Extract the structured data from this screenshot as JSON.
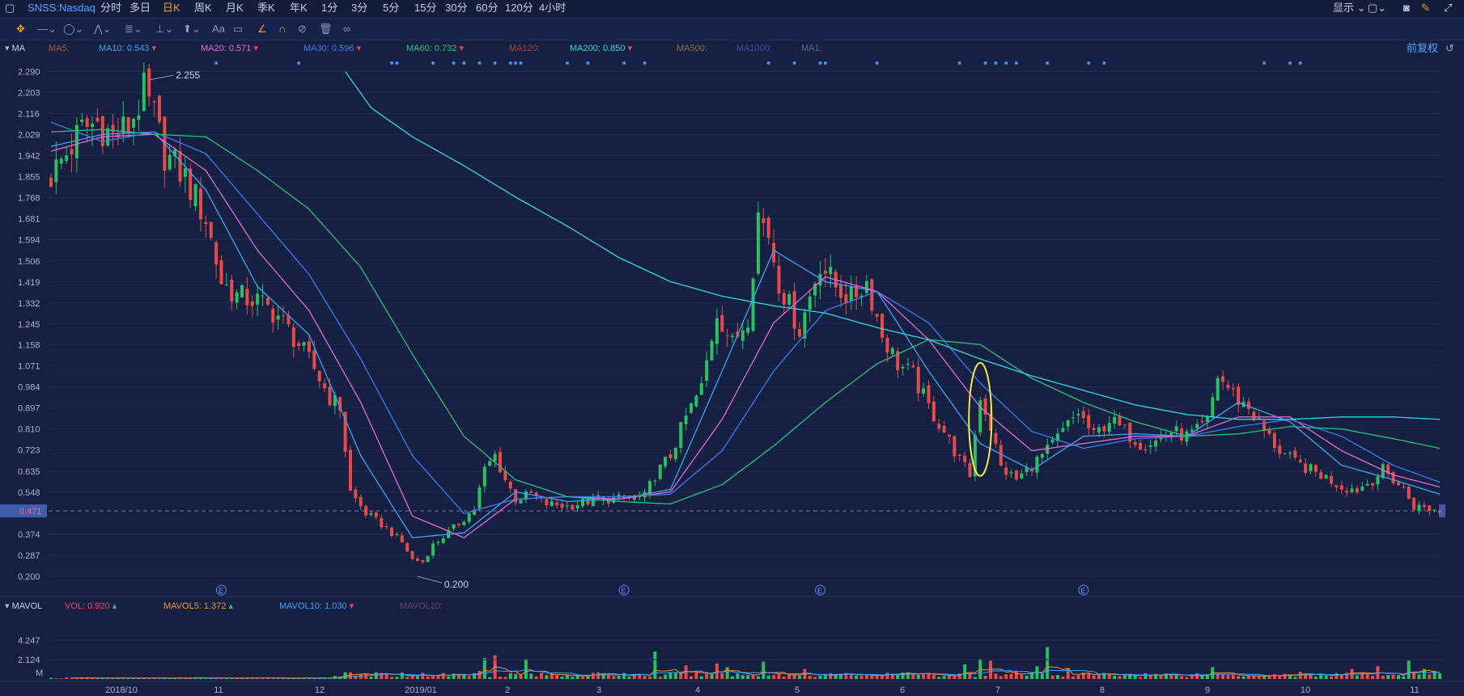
{
  "header": {
    "symbol": "SNSS:Nasdaq",
    "periods": [
      "分时",
      "多日",
      "日K",
      "周K",
      "月K",
      "季K",
      "年K",
      "1分",
      "3分",
      "5分",
      "15分",
      "30分",
      "60分",
      "120分",
      "4小时"
    ],
    "active_period": "日K",
    "display_label": "显示"
  },
  "indicators": {
    "main_name": "MA",
    "ma": [
      {
        "label": "MA5:",
        "value": "",
        "color": "#e06f2c"
      },
      {
        "label": "MA10:",
        "value": "0.543",
        "color": "#3ea3f5",
        "trend": "down"
      },
      {
        "label": "MA20:",
        "value": "0.571",
        "color": "#e56ad6",
        "trend": "down"
      },
      {
        "label": "MA30:",
        "value": "0.596",
        "color": "#3a7cf0",
        "trend": "down"
      },
      {
        "label": "MA60:",
        "value": "0.732",
        "color": "#27c17a",
        "trend": "down"
      },
      {
        "label": "MA120:",
        "value": "",
        "color": "#c9573a"
      },
      {
        "label": "MA200:",
        "value": "0.850",
        "color": "#2fd6e0",
        "trend": "down"
      },
      {
        "label": "MA500:",
        "value": "",
        "color": "#b48a3a"
      },
      {
        "label": "MA1000:",
        "value": "",
        "color": "#5a59c8"
      },
      {
        "label": "MA1:",
        "value": "",
        "color": "#7d7f96"
      }
    ],
    "adjust_label": "前复权",
    "sub_name": "MAVOL",
    "vol": [
      {
        "label": "VOL:",
        "value": "0.920",
        "color": "#e84a5f",
        "trend": "up"
      },
      {
        "label": "MAVOL5:",
        "value": "1.372",
        "color": "#f09530",
        "trend": "up"
      },
      {
        "label": "MAVOL10:",
        "value": "1.030",
        "color": "#3ea3f5",
        "trend": "down"
      },
      {
        "label": "MAVOL20:",
        "value": "",
        "color": "#8b4a8a"
      }
    ]
  },
  "chart_data": {
    "type": "candlestick",
    "price_axis": {
      "ticks": [
        "2.290",
        "2.203",
        "2.116",
        "2.029",
        "1.942",
        "1.855",
        "1.768",
        "1.681",
        "1.594",
        "1.506",
        "1.419",
        "1.332",
        "1.245",
        "1.158",
        "1.071",
        "0.984",
        "0.897",
        "0.810",
        "0.723",
        "0.635",
        "0.548",
        "0.374",
        "0.287",
        "0.200"
      ],
      "range": [
        0.17,
        2.34
      ],
      "current_price": "0.471"
    },
    "volume_axis": {
      "ticks": [
        "4.247",
        "2.124"
      ],
      "unit": "M"
    },
    "time_axis": [
      "2018/10",
      "11",
      "12",
      "2019/01",
      "2",
      "3",
      "4",
      "5",
      "6",
      "7",
      "8",
      "9",
      "10",
      "11"
    ],
    "annotations": {
      "high": "2.255",
      "low": "0.200",
      "earnings_marker": "E"
    },
    "price_path": [
      [
        0,
        1.86
      ],
      [
        3,
        1.95
      ],
      [
        6,
        2.05
      ],
      [
        9,
        2.08
      ],
      [
        12,
        2.02
      ],
      [
        15,
        2.06
      ],
      [
        18,
        2.2
      ],
      [
        20,
        2.1
      ],
      [
        22,
        1.95
      ],
      [
        26,
        1.85
      ],
      [
        30,
        1.68
      ],
      [
        33,
        1.42
      ],
      [
        36,
        1.36
      ],
      [
        40,
        1.34
      ],
      [
        44,
        1.28
      ],
      [
        48,
        1.16
      ],
      [
        51,
        1.06
      ],
      [
        54,
        0.94
      ],
      [
        56,
        0.9
      ],
      [
        58,
        0.55
      ],
      [
        61,
        0.46
      ],
      [
        65,
        0.4
      ],
      [
        68,
        0.34
      ],
      [
        70,
        0.27
      ],
      [
        72,
        0.26
      ],
      [
        74,
        0.33
      ],
      [
        78,
        0.4
      ],
      [
        82,
        0.48
      ],
      [
        84,
        0.64
      ],
      [
        86,
        0.7
      ],
      [
        88,
        0.6
      ],
      [
        90,
        0.52
      ],
      [
        93,
        0.54
      ],
      [
        96,
        0.5
      ],
      [
        100,
        0.49
      ],
      [
        104,
        0.51
      ],
      [
        108,
        0.52
      ],
      [
        112,
        0.52
      ],
      [
        115,
        0.53
      ],
      [
        117,
        0.62
      ],
      [
        120,
        0.7
      ],
      [
        123,
        0.86
      ],
      [
        126,
        0.98
      ],
      [
        129,
        1.3
      ],
      [
        132,
        1.16
      ],
      [
        135,
        1.28
      ],
      [
        137,
        1.7
      ],
      [
        139,
        1.62
      ],
      [
        141,
        1.42
      ],
      [
        143,
        1.32
      ],
      [
        145,
        1.22
      ],
      [
        147,
        1.36
      ],
      [
        149,
        1.5
      ],
      [
        152,
        1.4
      ],
      [
        155,
        1.35
      ],
      [
        158,
        1.42
      ],
      [
        161,
        1.2
      ],
      [
        164,
        1.08
      ],
      [
        167,
        1.03
      ],
      [
        170,
        0.9
      ],
      [
        173,
        0.8
      ],
      [
        176,
        0.68
      ],
      [
        178,
        0.62
      ],
      [
        180,
        0.95
      ],
      [
        182,
        0.82
      ],
      [
        184,
        0.65
      ],
      [
        187,
        0.6
      ],
      [
        190,
        0.66
      ],
      [
        193,
        0.72
      ],
      [
        196,
        0.8
      ],
      [
        199,
        0.88
      ],
      [
        202,
        0.78
      ],
      [
        205,
        0.85
      ],
      [
        208,
        0.8
      ],
      [
        211,
        0.75
      ],
      [
        214,
        0.76
      ],
      [
        217,
        0.8
      ],
      [
        220,
        0.78
      ],
      [
        222,
        0.8
      ],
      [
        224,
        0.84
      ],
      [
        226,
        1.03
      ],
      [
        228,
        0.98
      ],
      [
        230,
        0.93
      ],
      [
        232,
        0.9
      ],
      [
        235,
        0.8
      ],
      [
        238,
        0.72
      ],
      [
        241,
        0.67
      ],
      [
        244,
        0.64
      ],
      [
        247,
        0.61
      ],
      [
        250,
        0.57
      ],
      [
        253,
        0.56
      ],
      [
        256,
        0.6
      ],
      [
        258,
        0.64
      ],
      [
        260,
        0.6
      ],
      [
        262,
        0.56
      ],
      [
        264,
        0.49
      ],
      [
        267,
        0.48
      ],
      [
        269,
        0.47
      ]
    ],
    "ma_paths": {
      "MA10": [
        [
          0,
          1.98
        ],
        [
          10,
          2.03
        ],
        [
          20,
          2.04
        ],
        [
          30,
          1.8
        ],
        [
          40,
          1.4
        ],
        [
          50,
          1.2
        ],
        [
          60,
          0.7
        ],
        [
          70,
          0.36
        ],
        [
          80,
          0.38
        ],
        [
          90,
          0.55
        ],
        [
          100,
          0.51
        ],
        [
          110,
          0.52
        ],
        [
          120,
          0.56
        ],
        [
          130,
          1.05
        ],
        [
          140,
          1.55
        ],
        [
          150,
          1.42
        ],
        [
          160,
          1.38
        ],
        [
          170,
          1.05
        ],
        [
          180,
          0.75
        ],
        [
          190,
          0.64
        ],
        [
          200,
          0.78
        ],
        [
          210,
          0.79
        ],
        [
          220,
          0.78
        ],
        [
          230,
          0.92
        ],
        [
          240,
          0.84
        ],
        [
          250,
          0.66
        ],
        [
          260,
          0.6
        ],
        [
          269,
          0.54
        ]
      ],
      "MA20": [
        [
          0,
          1.96
        ],
        [
          10,
          2.02
        ],
        [
          20,
          2.03
        ],
        [
          30,
          1.88
        ],
        [
          40,
          1.55
        ],
        [
          50,
          1.3
        ],
        [
          60,
          0.92
        ],
        [
          70,
          0.45
        ],
        [
          80,
          0.36
        ],
        [
          90,
          0.52
        ],
        [
          100,
          0.53
        ],
        [
          110,
          0.52
        ],
        [
          120,
          0.55
        ],
        [
          130,
          0.85
        ],
        [
          140,
          1.25
        ],
        [
          150,
          1.44
        ],
        [
          160,
          1.38
        ],
        [
          170,
          1.18
        ],
        [
          180,
          0.9
        ],
        [
          190,
          0.72
        ],
        [
          200,
          0.75
        ],
        [
          210,
          0.78
        ],
        [
          220,
          0.78
        ],
        [
          230,
          0.86
        ],
        [
          240,
          0.86
        ],
        [
          250,
          0.72
        ],
        [
          260,
          0.62
        ],
        [
          269,
          0.57
        ]
      ],
      "MA30": [
        [
          0,
          2.08
        ],
        [
          10,
          2.0
        ],
        [
          20,
          2.04
        ],
        [
          30,
          1.95
        ],
        [
          40,
          1.7
        ],
        [
          50,
          1.45
        ],
        [
          60,
          1.1
        ],
        [
          70,
          0.7
        ],
        [
          80,
          0.46
        ],
        [
          90,
          0.52
        ],
        [
          100,
          0.53
        ],
        [
          110,
          0.53
        ],
        [
          120,
          0.54
        ],
        [
          130,
          0.72
        ],
        [
          140,
          1.05
        ],
        [
          150,
          1.3
        ],
        [
          160,
          1.38
        ],
        [
          170,
          1.25
        ],
        [
          180,
          1.0
        ],
        [
          190,
          0.8
        ],
        [
          200,
          0.73
        ],
        [
          210,
          0.77
        ],
        [
          220,
          0.78
        ],
        [
          230,
          0.82
        ],
        [
          240,
          0.85
        ],
        [
          250,
          0.78
        ],
        [
          260,
          0.66
        ],
        [
          269,
          0.59
        ]
      ],
      "MA60": [
        [
          0,
          2.04
        ],
        [
          10,
          2.05
        ],
        [
          20,
          2.03
        ],
        [
          30,
          2.02
        ],
        [
          40,
          1.88
        ],
        [
          50,
          1.72
        ],
        [
          60,
          1.48
        ],
        [
          70,
          1.12
        ],
        [
          80,
          0.78
        ],
        [
          90,
          0.6
        ],
        [
          100,
          0.53
        ],
        [
          110,
          0.51
        ],
        [
          120,
          0.5
        ],
        [
          130,
          0.58
        ],
        [
          140,
          0.74
        ],
        [
          150,
          0.92
        ],
        [
          160,
          1.08
        ],
        [
          170,
          1.18
        ],
        [
          180,
          1.16
        ],
        [
          190,
          1.02
        ],
        [
          200,
          0.92
        ],
        [
          210,
          0.84
        ],
        [
          220,
          0.78
        ],
        [
          230,
          0.79
        ],
        [
          240,
          0.82
        ],
        [
          250,
          0.81
        ],
        [
          260,
          0.77
        ],
        [
          269,
          0.73
        ]
      ],
      "MA200": [
        [
          57,
          2.29
        ],
        [
          62,
          2.14
        ],
        [
          70,
          2.02
        ],
        [
          80,
          1.9
        ],
        [
          90,
          1.77
        ],
        [
          100,
          1.65
        ],
        [
          110,
          1.52
        ],
        [
          120,
          1.42
        ],
        [
          130,
          1.36
        ],
        [
          140,
          1.32
        ],
        [
          150,
          1.29
        ],
        [
          160,
          1.23
        ],
        [
          170,
          1.18
        ],
        [
          180,
          1.1
        ],
        [
          190,
          1.03
        ],
        [
          200,
          0.97
        ],
        [
          210,
          0.91
        ],
        [
          220,
          0.87
        ],
        [
          230,
          0.85
        ],
        [
          240,
          0.85
        ],
        [
          250,
          0.86
        ],
        [
          260,
          0.86
        ],
        [
          269,
          0.85
        ]
      ]
    },
    "volume_spikes": [
      [
        83,
        0.9
      ],
      [
        84,
        2.3
      ],
      [
        86,
        2.6
      ],
      [
        92,
        2.2
      ],
      [
        117,
        3.0
      ],
      [
        123,
        1.5
      ],
      [
        129,
        1.7
      ],
      [
        131,
        1.3
      ],
      [
        138,
        1.9
      ],
      [
        146,
        1.1
      ],
      [
        165,
        0.7
      ],
      [
        177,
        1.6
      ],
      [
        180,
        2.2
      ],
      [
        182,
        2.0
      ],
      [
        187,
        0.9
      ],
      [
        191,
        1.4
      ],
      [
        193,
        3.5
      ],
      [
        197,
        1.2
      ],
      [
        225,
        1.3
      ],
      [
        242,
        0.8
      ],
      [
        252,
        1.1
      ],
      [
        257,
        1.4
      ],
      [
        263,
        2.0
      ],
      [
        266,
        1.1
      ],
      [
        268,
        0.9
      ]
    ]
  }
}
